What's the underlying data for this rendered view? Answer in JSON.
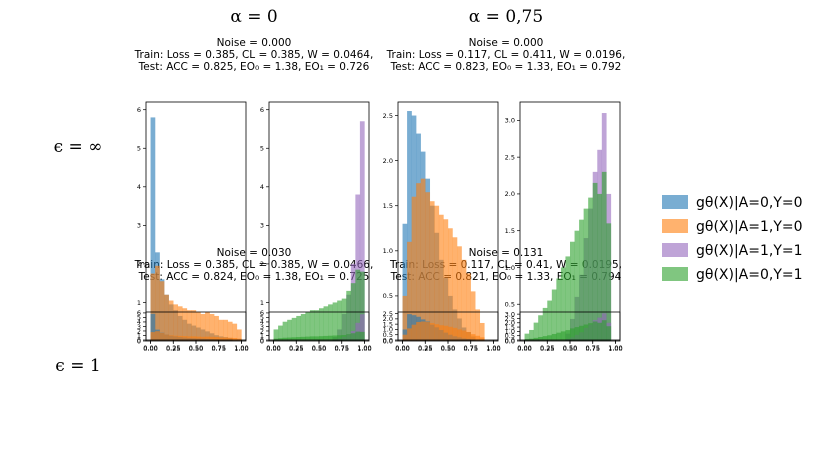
{
  "column_headers": [
    "α = 0",
    "α = 0,75"
  ],
  "row_headers": [
    "ϵ = ∞",
    "ϵ = 1"
  ],
  "legend": [
    {
      "label": "gθ(X)|A=0,Y=0",
      "color": "#1f77b4"
    },
    {
      "label": "gθ(X)|A=1,Y=0",
      "color": "#ff7f0e"
    },
    {
      "label": "gθ(X)|A=1,Y=1",
      "color": "#9467bd"
    },
    {
      "label": "gθ(X)|A=0,Y=1",
      "color": "#2ca02c"
    }
  ],
  "panels": [
    {
      "noise": "Noise = 0.000",
      "train": "Train: Loss = 0.385, CL = 0.385,  W = 0.0464,",
      "test": "Test: ACC = 0.825, EO₀ = 1.38, EO₁ = 0.726"
    },
    {
      "noise": "Noise = 0.000",
      "train": "Train: Loss = 0.117, CL = 0.411,  W = 0.0196,",
      "test": "Test: ACC = 0.823, EO₀ = 1.33, EO₁ = 0.792"
    },
    {
      "noise": "Noise = 0.030",
      "train": "Train: Loss = 0.385, CL = 0.385,  W = 0.0466,",
      "test": "Test: ACC = 0.824, EO₀ = 1.38, EO₁ = 0.725"
    },
    {
      "noise": "Noise = 0.131",
      "train": "Train: Loss = 0.117, CL = 0.41,  W = 0.0195,",
      "test": "Test: ACC = 0.821, EO₀ = 1.33, EO₁ = 0.794"
    }
  ],
  "chart_data": [
    {
      "type": "bar",
      "panel": 0,
      "subplot": "negative",
      "x_bin_edges": [
        0,
        0.05,
        0.1,
        0.15,
        0.2,
        0.25,
        0.3,
        0.35,
        0.4,
        0.45,
        0.5,
        0.55,
        0.6,
        0.65,
        0.7,
        0.75,
        0.8,
        0.85,
        0.9,
        0.95,
        1.0
      ],
      "xticks": [
        "0.00",
        "0.25",
        "0.50",
        "0.75",
        "1.00"
      ],
      "yticks": [
        "0",
        "1",
        "2",
        "3",
        "4",
        "5",
        "6"
      ],
      "ylim": [
        0,
        6.2
      ],
      "series": [
        {
          "name": "gθ(X)|A=0,Y=0",
          "values": [
            5.8,
            2.3,
            1.6,
            1.2,
            0.95,
            0.8,
            0.65,
            0.55,
            0.45,
            0.4,
            0.35,
            0.3,
            0.25,
            0.2,
            0.15,
            0.12,
            0.1,
            0.08,
            0,
            0
          ]
        },
        {
          "name": "gθ(X)|A=1,Y=0",
          "values": [
            1.75,
            1.95,
            1.55,
            1.2,
            1.05,
            0.95,
            0.9,
            0.85,
            0.8,
            0.8,
            0.75,
            0.7,
            0.75,
            0.7,
            0.65,
            0.55,
            0.55,
            0.5,
            0.45,
            0.3
          ]
        }
      ]
    },
    {
      "type": "bar",
      "panel": 0,
      "subplot": "positive",
      "x_bin_edges": [
        0,
        0.05,
        0.1,
        0.15,
        0.2,
        0.25,
        0.3,
        0.35,
        0.4,
        0.45,
        0.5,
        0.55,
        0.6,
        0.65,
        0.7,
        0.75,
        0.8,
        0.85,
        0.9,
        0.95,
        1.0
      ],
      "xticks": [
        "0.00",
        "0.25",
        "0.50",
        "0.75",
        "1.00"
      ],
      "yticks": [
        "0",
        "1",
        "2",
        "3",
        "4",
        "5",
        "6"
      ],
      "ylim": [
        0,
        6.2
      ],
      "series": [
        {
          "name": "gθ(X)|A=1,Y=1",
          "values": [
            0,
            0,
            0,
            0,
            0,
            0,
            0,
            0,
            0,
            0,
            0,
            0,
            0,
            0.1,
            0.3,
            0.7,
            1.2,
            2.0,
            3.8,
            5.7
          ]
        },
        {
          "name": "gθ(X)|A=0,Y=1",
          "values": [
            0.3,
            0.4,
            0.5,
            0.55,
            0.6,
            0.65,
            0.7,
            0.75,
            0.8,
            0.8,
            0.85,
            0.9,
            0.95,
            1.0,
            1.05,
            1.1,
            1.3,
            1.5,
            1.85,
            1.8
          ]
        }
      ]
    },
    {
      "type": "bar",
      "panel": 1,
      "subplot": "negative",
      "x_bin_edges": [
        0,
        0.05,
        0.1,
        0.15,
        0.2,
        0.25,
        0.3,
        0.35,
        0.4,
        0.45,
        0.5,
        0.55,
        0.6,
        0.65,
        0.7,
        0.75,
        0.8,
        0.85,
        0.9,
        0.95,
        1.0
      ],
      "xticks": [
        "0.00",
        "0.25",
        "0.50",
        "0.75",
        "1.00"
      ],
      "yticks": [
        "0.0",
        "0.5",
        "1.0",
        "1.5",
        "2.0",
        "2.5"
      ],
      "ylim": [
        0,
        2.65
      ],
      "series": [
        {
          "name": "gθ(X)|A=0,Y=0",
          "values": [
            1.3,
            2.55,
            2.5,
            2.3,
            2.1,
            1.8,
            1.5,
            1.2,
            0.9,
            0.7,
            0.5,
            0.35,
            0.25,
            0.15,
            0.1,
            0.05,
            0,
            0,
            0,
            0
          ]
        },
        {
          "name": "gθ(X)|A=1,Y=0",
          "values": [
            0.5,
            1.1,
            1.6,
            1.75,
            1.8,
            1.65,
            1.55,
            1.5,
            1.4,
            1.35,
            1.25,
            1.15,
            1.05,
            0.9,
            0.75,
            0.55,
            0.35,
            0.2,
            0,
            0
          ]
        }
      ]
    },
    {
      "type": "bar",
      "panel": 1,
      "subplot": "positive",
      "x_bin_edges": [
        0,
        0.05,
        0.1,
        0.15,
        0.2,
        0.25,
        0.3,
        0.35,
        0.4,
        0.45,
        0.5,
        0.55,
        0.6,
        0.65,
        0.7,
        0.75,
        0.8,
        0.85,
        0.9,
        0.95,
        1.0
      ],
      "xticks": [
        "0.00",
        "0.25",
        "0.50",
        "0.75",
        "1.00"
      ],
      "yticks": [
        "0.0",
        "0.5",
        "1.0",
        "1.5",
        "2.0",
        "2.5",
        "3.0"
      ],
      "ylim": [
        0,
        3.25
      ],
      "series": [
        {
          "name": "gθ(X)|A=1,Y=1",
          "values": [
            0,
            0,
            0,
            0,
            0,
            0,
            0,
            0,
            0,
            0.1,
            0.3,
            0.6,
            0.9,
            1.4,
            1.8,
            2.3,
            2.6,
            3.1,
            2.0,
            0
          ]
        },
        {
          "name": "gθ(X)|A=0,Y=1",
          "values": [
            0.1,
            0.15,
            0.25,
            0.35,
            0.45,
            0.55,
            0.7,
            0.85,
            1.0,
            1.15,
            1.35,
            1.5,
            1.65,
            1.8,
            1.95,
            2.15,
            2.0,
            2.3,
            1.6,
            0
          ]
        }
      ]
    },
    {
      "type": "bar",
      "panel": 2,
      "subplot": "negative",
      "x_bin_edges": [
        0,
        0.05,
        0.1,
        0.15,
        0.2,
        0.25,
        0.3,
        0.35,
        0.4,
        0.45,
        0.5,
        0.55,
        0.6,
        0.65,
        0.7,
        0.75,
        0.8,
        0.85,
        0.9,
        0.95,
        1.0
      ],
      "xticks": [
        "0.00",
        "0.25",
        "0.50",
        "0.75",
        "1.00"
      ],
      "yticks": [
        "0",
        "1",
        "2",
        "3",
        "4",
        "5",
        "6"
      ],
      "ylim": [
        0,
        6.2
      ],
      "series": [
        {
          "name": "gθ(X)|A=0,Y=0",
          "values": [
            5.8,
            2.3,
            1.6,
            1.2,
            0.95,
            0.8,
            0.65,
            0.55,
            0.45,
            0.4,
            0.35,
            0.3,
            0.25,
            0.2,
            0.15,
            0.12,
            0.1,
            0.08,
            0,
            0
          ]
        },
        {
          "name": "gθ(X)|A=1,Y=0",
          "values": [
            1.75,
            1.95,
            1.55,
            1.2,
            1.05,
            0.95,
            0.9,
            0.85,
            0.8,
            0.8,
            0.75,
            0.7,
            0.75,
            0.7,
            0.65,
            0.55,
            0.55,
            0.5,
            0.45,
            0.3
          ]
        }
      ]
    },
    {
      "type": "bar",
      "panel": 2,
      "subplot": "positive",
      "x_bin_edges": [
        0,
        0.05,
        0.1,
        0.15,
        0.2,
        0.25,
        0.3,
        0.35,
        0.4,
        0.45,
        0.5,
        0.55,
        0.6,
        0.65,
        0.7,
        0.75,
        0.8,
        0.85,
        0.9,
        0.95,
        1.0
      ],
      "xticks": [
        "0.00",
        "0.25",
        "0.50",
        "0.75",
        "1.00"
      ],
      "yticks": [
        "0",
        "1",
        "2",
        "3",
        "4",
        "5",
        "6"
      ],
      "ylim": [
        0,
        6.2
      ],
      "series": [
        {
          "name": "gθ(X)|A=1,Y=1",
          "values": [
            0,
            0,
            0,
            0,
            0,
            0,
            0,
            0,
            0,
            0,
            0,
            0,
            0,
            0.1,
            0.3,
            0.7,
            1.2,
            2.0,
            3.8,
            5.7
          ]
        },
        {
          "name": "gθ(X)|A=0,Y=1",
          "values": [
            0.3,
            0.4,
            0.5,
            0.55,
            0.6,
            0.65,
            0.7,
            0.75,
            0.8,
            0.8,
            0.85,
            0.9,
            0.95,
            1.0,
            1.05,
            1.1,
            1.3,
            1.5,
            1.85,
            1.8
          ]
        }
      ]
    },
    {
      "type": "bar",
      "panel": 3,
      "subplot": "negative",
      "x_bin_edges": [
        0,
        0.05,
        0.1,
        0.15,
        0.2,
        0.25,
        0.3,
        0.35,
        0.4,
        0.45,
        0.5,
        0.55,
        0.6,
        0.65,
        0.7,
        0.75,
        0.8,
        0.85,
        0.9,
        0.95,
        1.0
      ],
      "xticks": [
        "0.00",
        "0.25",
        "0.50",
        "0.75",
        "1.00"
      ],
      "yticks": [
        "0.0",
        "0.5",
        "1.0",
        "1.5",
        "2.0",
        "2.5"
      ],
      "ylim": [
        0,
        2.65
      ],
      "series": [
        {
          "name": "gθ(X)|A=0,Y=0",
          "values": [
            1.0,
            2.45,
            2.35,
            2.2,
            1.95,
            1.75,
            1.45,
            1.2,
            0.95,
            0.7,
            0.5,
            0.35,
            0.25,
            0.15,
            0.1,
            0.05,
            0,
            0,
            0,
            0
          ]
        },
        {
          "name": "gθ(X)|A=1,Y=0",
          "values": [
            0.5,
            1.1,
            1.45,
            1.7,
            1.75,
            1.7,
            1.6,
            1.5,
            1.4,
            1.35,
            1.25,
            1.15,
            1.0,
            0.9,
            0.75,
            0.55,
            0.4,
            0.25,
            0,
            0
          ]
        }
      ]
    },
    {
      "type": "bar",
      "panel": 3,
      "subplot": "positive",
      "x_bin_edges": [
        0,
        0.05,
        0.1,
        0.15,
        0.2,
        0.25,
        0.3,
        0.35,
        0.4,
        0.45,
        0.5,
        0.55,
        0.6,
        0.65,
        0.7,
        0.75,
        0.8,
        0.85,
        0.9,
        0.95,
        1.0
      ],
      "xticks": [
        "0.00",
        "0.25",
        "0.50",
        "0.75",
        "1.00"
      ],
      "yticks": [
        "0.0",
        "0.5",
        "1.0",
        "1.5",
        "2.0",
        "2.5",
        "3.0"
      ],
      "ylim": [
        0,
        3.25
      ],
      "series": [
        {
          "name": "gθ(X)|A=1,Y=1",
          "values": [
            0,
            0,
            0,
            0,
            0,
            0,
            0,
            0,
            0,
            0.1,
            0.3,
            0.6,
            0.9,
            1.4,
            1.8,
            2.3,
            2.6,
            3.1,
            2.0,
            0
          ]
        },
        {
          "name": "gθ(X)|A=0,Y=1",
          "values": [
            0.1,
            0.15,
            0.25,
            0.35,
            0.45,
            0.55,
            0.7,
            0.85,
            1.0,
            1.15,
            1.35,
            1.5,
            1.65,
            1.8,
            1.95,
            2.15,
            2.0,
            2.3,
            1.6,
            0
          ]
        }
      ]
    }
  ]
}
